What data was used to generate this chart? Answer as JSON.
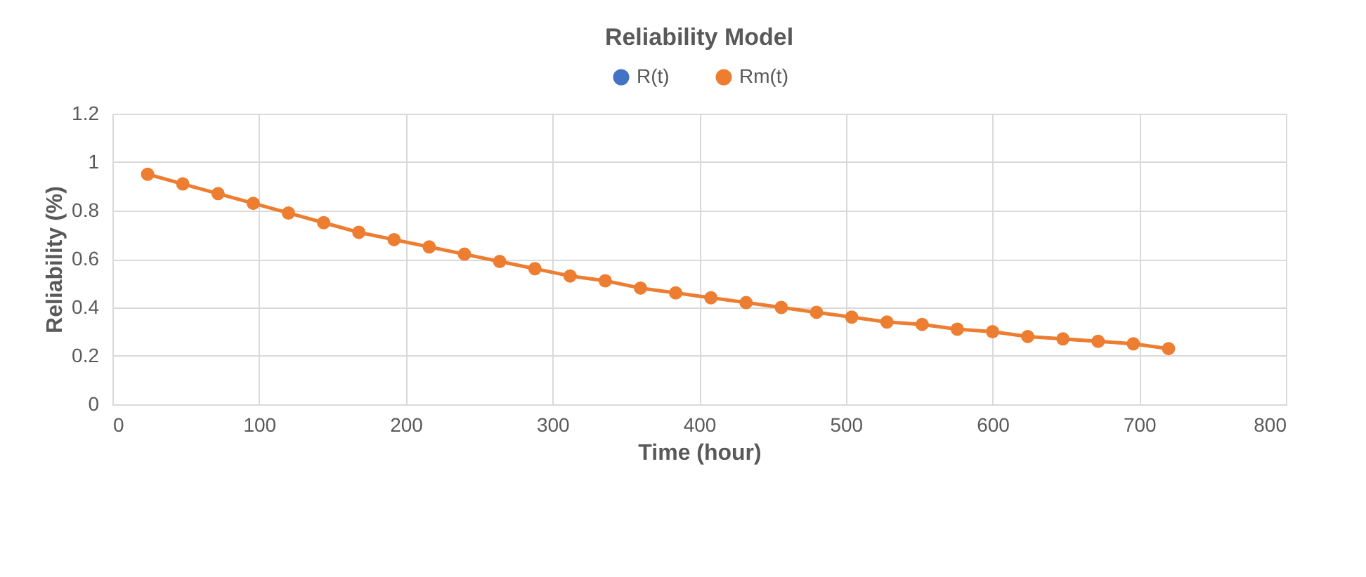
{
  "chart_data": {
    "type": "line",
    "title": "Reliability Model",
    "xlabel": "Time (hour)",
    "ylabel": "Reliability (%)",
    "x": [
      24,
      48,
      72,
      96,
      120,
      144,
      168,
      192,
      216,
      240,
      264,
      288,
      312,
      336,
      360,
      384,
      408,
      432,
      456,
      480,
      504,
      528,
      552,
      576,
      600,
      624,
      648,
      672,
      696,
      720
    ],
    "series": [
      {
        "name": "R(t)",
        "color": "#4472c4",
        "values": [
          null,
          null,
          null,
          null,
          null,
          null,
          null,
          null,
          null,
          null,
          null,
          null,
          null,
          null,
          null,
          null,
          null,
          null,
          null,
          null,
          null,
          null,
          null,
          null,
          null,
          null,
          null,
          null,
          null,
          null
        ]
      },
      {
        "name": "Rm(t)",
        "color": "#ed7d31",
        "values": [
          0.95,
          0.91,
          0.87,
          0.83,
          0.79,
          0.75,
          0.71,
          0.68,
          0.65,
          0.62,
          0.59,
          0.56,
          0.53,
          0.51,
          0.48,
          0.46,
          0.44,
          0.42,
          0.4,
          0.38,
          0.36,
          0.34,
          0.33,
          0.31,
          0.3,
          0.28,
          0.27,
          0.26,
          0.25,
          0.23
        ]
      }
    ],
    "xlim": [
      0,
      800
    ],
    "xticks": [
      0,
      100,
      200,
      300,
      400,
      500,
      600,
      700,
      800
    ],
    "ylim": [
      0,
      1.2
    ],
    "yticks": [
      0,
      0.2,
      0.4,
      0.6,
      0.8,
      1,
      1.2
    ],
    "grid": true,
    "legend": "top",
    "marker": "circle",
    "line_style": "solid"
  }
}
